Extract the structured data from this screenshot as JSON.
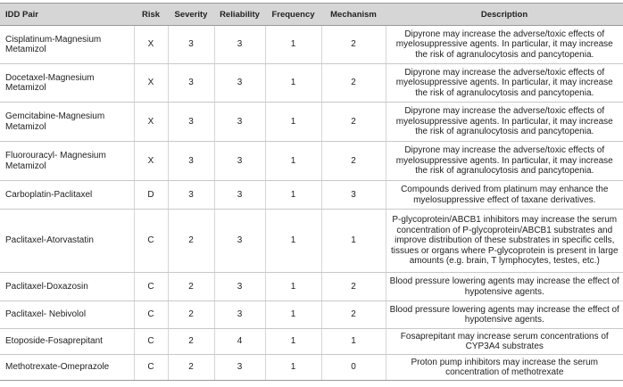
{
  "table": {
    "header": [
      "IDD Pair",
      "Risk",
      "Severity",
      "Reliability",
      "Frequency",
      "Mechanism",
      "Description"
    ],
    "rows": [
      [
        "Cisplatinum-Magnesium Metamizol",
        "X",
        3,
        3,
        1,
        2,
        "Dipyrone may increase the adverse/toxic effects of myelosuppressive agents. In particular, it may increase the risk of agranulocytosis and pancytopenia."
      ],
      [
        "Docetaxel-Magnesium Metamizol",
        "X",
        3,
        3,
        1,
        2,
        "Dipyrone may increase the adverse/toxic effects of myelosuppressive agents. In particular, it may increase the risk of agranulocytosis and pancytopenia."
      ],
      [
        "Gemcitabine-Magnesium Metamizol",
        "X",
        3,
        3,
        1,
        2,
        "Dipyrone may increase the adverse/toxic effects of myelosuppressive agents. In particular, it may increase the risk of agranulocytosis and pancytopenia."
      ],
      [
        "Fluorouracyl- Magnesium Metamizol",
        "X",
        3,
        3,
        1,
        2,
        "Dipyrone may increase the adverse/toxic effects of myelosuppressive agents. In particular, it may increase the risk of agranulocytosis and pancytopenia."
      ],
      [
        "Carboplatin-Paclitaxel",
        "D",
        3,
        3,
        1,
        3,
        "Compounds derived from platinum may enhance the myelosuppressive effect of taxane derivatives."
      ],
      [
        "Paclitaxel-Atorvastatin",
        "C",
        2,
        3,
        1,
        1,
        "P-glycoprotein/ABCB1 inhibitors may increase the serum concentration of P-glycoprotein/ABCB1 substrates and improve distribution of these substrates in specific cells, tissues or organs where P-glycoprotein is present in large amounts (e.g. brain, T lymphocytes, testes, etc.)"
      ],
      [
        "Paclitaxel-Doxazosin",
        "C",
        2,
        3,
        1,
        2,
        "Blood pressure lowering agents may increase the effect of hypotensive agents."
      ],
      [
        "Paclitaxel- Nebivolol",
        "C",
        2,
        3,
        1,
        2,
        "Blood pressure lowering agents may increase the effect of hypotensive agents."
      ],
      [
        "Etoposide-Fosaprepitant",
        "C",
        2,
        4,
        1,
        1,
        "Fosaprepitant may increase serum concentrations of CYP3A4 substrates"
      ],
      [
        "Methotrexate-Omeprazole",
        "C",
        2,
        3,
        1,
        0,
        "Proton pump inhibitors may increase the serum concentration of methotrexate"
      ]
    ]
  }
}
